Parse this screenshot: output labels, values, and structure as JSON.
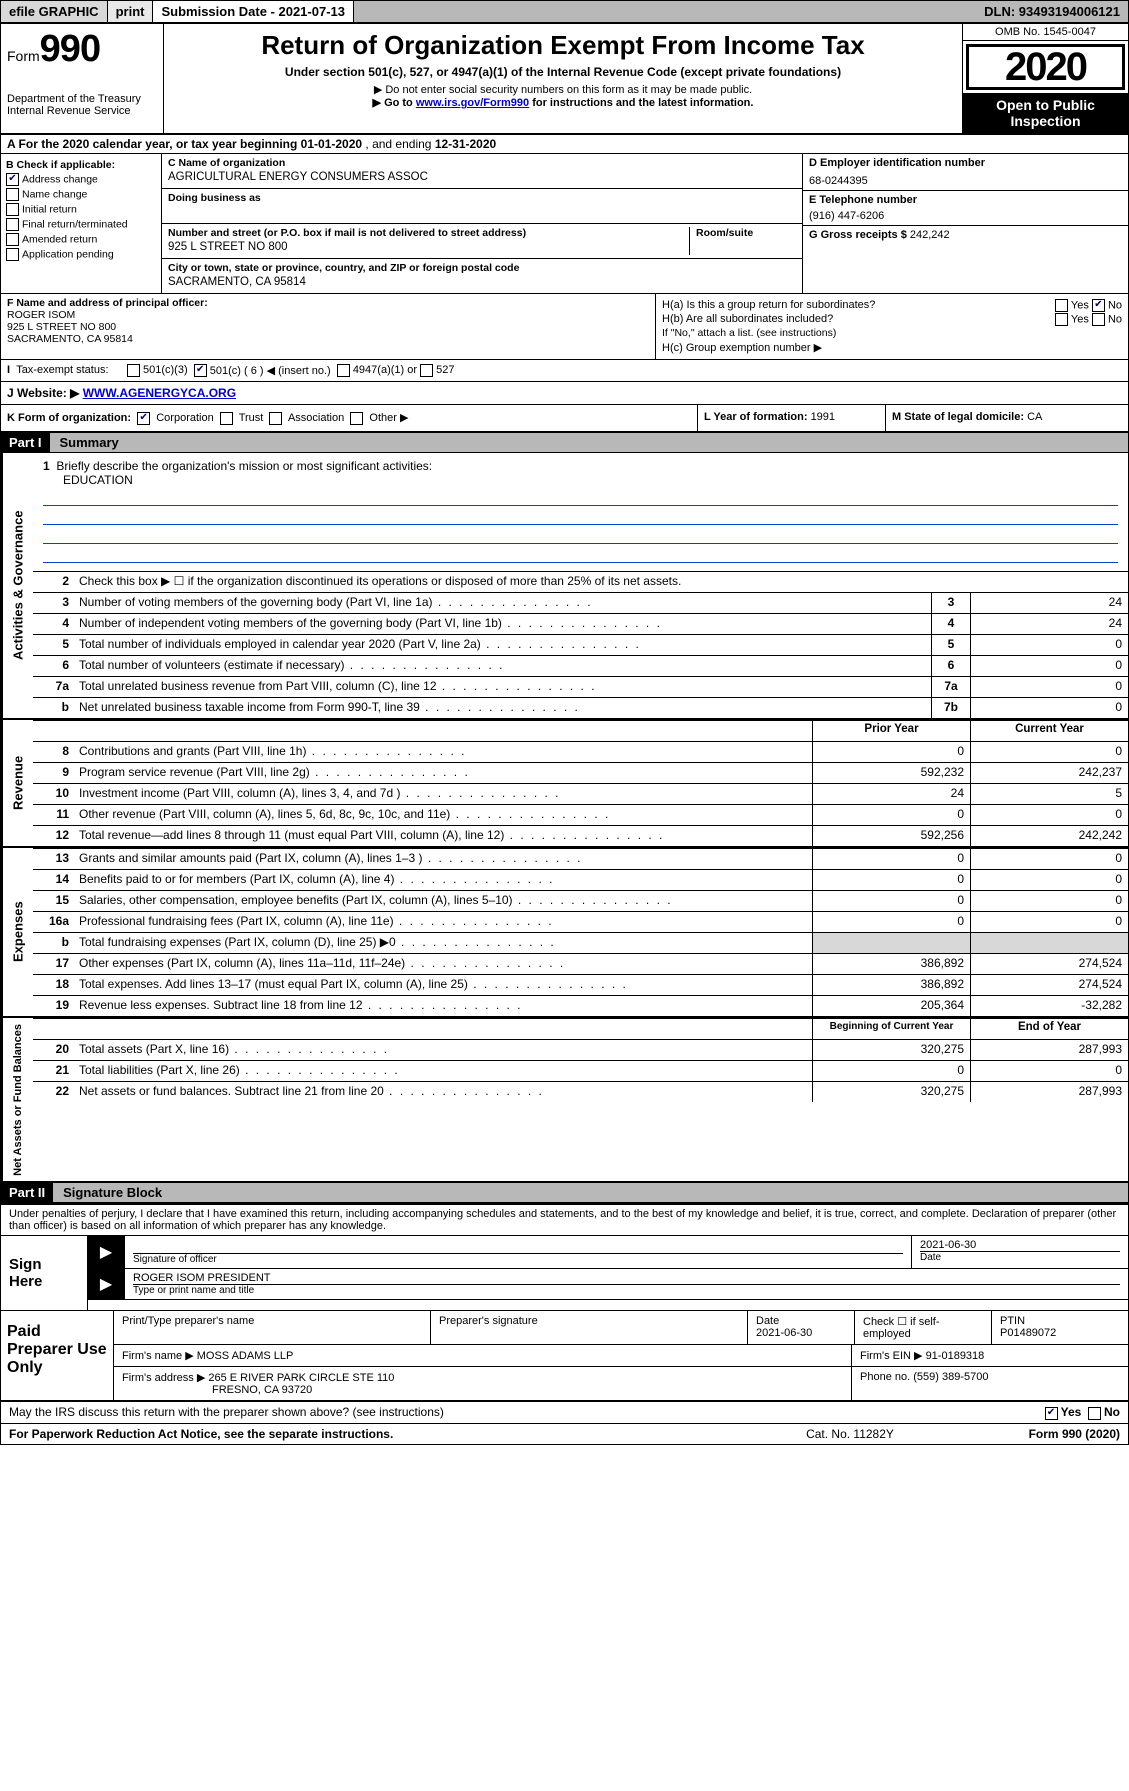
{
  "top": {
    "efile": "efile GRAPHIC",
    "print": "print",
    "submission": "Submission Date - 2021-07-13",
    "dln": "DLN: 93493194006121"
  },
  "header": {
    "form_label": "Form",
    "form_num": "990",
    "title": "Return of Organization Exempt From Income Tax",
    "sub1": "Under section 501(c), 527, or 4947(a)(1) of the Internal Revenue Code (except private foundations)",
    "sub2": "▶ Do not enter social security numbers on this form as it may be made public.",
    "sub3_prefix": "▶ Go to ",
    "sub3_link": "www.irs.gov/Form990",
    "sub3_suffix": " for instructions and the latest information.",
    "dept": "Department of the Treasury",
    "irs": "Internal Revenue Service",
    "omb": "OMB No. 1545-0047",
    "year": "2020",
    "open": "Open to Public Inspection"
  },
  "row_a": {
    "prefix": "A For the 2020 calendar year, or tax year beginning ",
    "begin": "01-01-2020",
    "mid": " , and ending ",
    "end": "12-31-2020"
  },
  "col_b": {
    "label": "B Check if applicable:",
    "addr": "Address change",
    "name": "Name change",
    "init": "Initial return",
    "final": "Final return/terminated",
    "amend": "Amended return",
    "app": "Application pending"
  },
  "col_c": {
    "name_label": "C Name of organization",
    "name": "AGRICULTURAL ENERGY CONSUMERS ASSOC",
    "dba_label": "Doing business as",
    "dba": "",
    "street_label": "Number and street (or P.O. box if mail is not delivered to street address)",
    "room_label": "Room/suite",
    "street": "925 L STREET NO 800",
    "city_label": "City or town, state or province, country, and ZIP or foreign postal code",
    "city": "SACRAMENTO, CA  95814"
  },
  "col_d": {
    "ein_label": "D Employer identification number",
    "ein": "68-0244395",
    "phone_label": "E Telephone number",
    "phone": "(916) 447-6206",
    "gross_label": "G Gross receipts $ ",
    "gross": "242,242"
  },
  "row_f": {
    "label": "F  Name and address of principal officer:",
    "name": "ROGER ISOM",
    "addr1": "925 L STREET NO 800",
    "addr2": "SACRAMENTO, CA  95814",
    "ha": "H(a)  Is this a group return for subordinates?",
    "hb": "H(b)  Are all subordinates included?",
    "hb_note": "If \"No,\" attach a list. (see instructions)",
    "hc": "H(c)  Group exemption number ▶",
    "yes": "Yes",
    "no": "No"
  },
  "tax_status": {
    "label": "Tax-exempt status:",
    "c3": "501(c)(3)",
    "c": "501(c) ( 6 ) ◀ (insert no.)",
    "a1": "4947(a)(1) or",
    "s527": "527"
  },
  "row_j": {
    "label": "J   Website: ▶  ",
    "url": "WWW.AGENERGYCA.ORG"
  },
  "row_k": {
    "label": "K Form of organization:",
    "corp": "Corporation",
    "trust": "Trust",
    "assoc": "Association",
    "other": "Other ▶",
    "l": "L Year of formation: ",
    "l_val": "1991",
    "m": "M State of legal domicile: ",
    "m_val": "CA"
  },
  "part1": {
    "header": "Part I",
    "title": "Summary",
    "side_gov": "Activities & Governance",
    "side_rev": "Revenue",
    "side_exp": "Expenses",
    "side_net": "Net Assets or Fund Balances",
    "line1": "Briefly describe the organization's mission or most significant activities:",
    "mission": "EDUCATION",
    "line2": "Check this box ▶ ☐  if the organization discontinued its operations or disposed of more than 25% of its net assets.",
    "rows": [
      {
        "n": "3",
        "d": "Number of voting members of the governing body (Part VI, line 1a)",
        "b": "3",
        "v": "24"
      },
      {
        "n": "4",
        "d": "Number of independent voting members of the governing body (Part VI, line 1b)",
        "b": "4",
        "v": "24"
      },
      {
        "n": "5",
        "d": "Total number of individuals employed in calendar year 2020 (Part V, line 2a)",
        "b": "5",
        "v": "0"
      },
      {
        "n": "6",
        "d": "Total number of volunteers (estimate if necessary)",
        "b": "6",
        "v": "0"
      },
      {
        "n": "7a",
        "d": "Total unrelated business revenue from Part VIII, column (C), line 12",
        "b": "7a",
        "v": "0"
      },
      {
        "n": "b",
        "d": "Net unrelated business taxable income from Form 990-T, line 39",
        "b": "7b",
        "v": "0"
      }
    ],
    "col_prior": "Prior Year",
    "col_current": "Current Year",
    "revenue": [
      {
        "n": "8",
        "d": "Contributions and grants (Part VIII, line 1h)",
        "p": "0",
        "c": "0"
      },
      {
        "n": "9",
        "d": "Program service revenue (Part VIII, line 2g)",
        "p": "592,232",
        "c": "242,237"
      },
      {
        "n": "10",
        "d": "Investment income (Part VIII, column (A), lines 3, 4, and 7d )",
        "p": "24",
        "c": "5"
      },
      {
        "n": "11",
        "d": "Other revenue (Part VIII, column (A), lines 5, 6d, 8c, 9c, 10c, and 11e)",
        "p": "0",
        "c": "0"
      },
      {
        "n": "12",
        "d": "Total revenue—add lines 8 through 11 (must equal Part VIII, column (A), line 12)",
        "p": "592,256",
        "c": "242,242"
      }
    ],
    "expenses": [
      {
        "n": "13",
        "d": "Grants and similar amounts paid (Part IX, column (A), lines 1–3 )",
        "p": "0",
        "c": "0"
      },
      {
        "n": "14",
        "d": "Benefits paid to or for members (Part IX, column (A), line 4)",
        "p": "0",
        "c": "0"
      },
      {
        "n": "15",
        "d": "Salaries, other compensation, employee benefits (Part IX, column (A), lines 5–10)",
        "p": "0",
        "c": "0"
      },
      {
        "n": "16a",
        "d": "Professional fundraising fees (Part IX, column (A), line 11e)",
        "p": "0",
        "c": "0"
      },
      {
        "n": "b",
        "d": "Total fundraising expenses (Part IX, column (D), line 25) ▶0",
        "p": "",
        "c": "",
        "shade": true
      },
      {
        "n": "17",
        "d": "Other expenses (Part IX, column (A), lines 11a–11d, 11f–24e)",
        "p": "386,892",
        "c": "274,524"
      },
      {
        "n": "18",
        "d": "Total expenses. Add lines 13–17 (must equal Part IX, column (A), line 25)",
        "p": "386,892",
        "c": "274,524"
      },
      {
        "n": "19",
        "d": "Revenue less expenses. Subtract line 18 from line 12",
        "p": "205,364",
        "c": "-32,282"
      }
    ],
    "col_begin": "Beginning of Current Year",
    "col_end": "End of Year",
    "net": [
      {
        "n": "20",
        "d": "Total assets (Part X, line 16)",
        "p": "320,275",
        "c": "287,993"
      },
      {
        "n": "21",
        "d": "Total liabilities (Part X, line 26)",
        "p": "0",
        "c": "0"
      },
      {
        "n": "22",
        "d": "Net assets or fund balances. Subtract line 21 from line 20",
        "p": "320,275",
        "c": "287,993"
      }
    ]
  },
  "part2": {
    "header": "Part II",
    "title": "Signature Block",
    "perjury": "Under penalties of perjury, I declare that I have examined this return, including accompanying schedules and statements, and to the best of my knowledge and belief, it is true, correct, and complete. Declaration of preparer (other than officer) is based on all information of which preparer has any knowledge.",
    "sign_here": "Sign Here",
    "sig_officer": "Signature of officer",
    "date_label": "Date",
    "date": "2021-06-30",
    "officer_name": "ROGER ISOM PRESIDENT",
    "type_label": "Type or print name and title",
    "paid": "Paid Preparer Use Only",
    "prep_name_label": "Print/Type preparer's name",
    "prep_sig_label": "Preparer's signature",
    "prep_date": "2021-06-30",
    "check_self": "Check ☐ if self-employed",
    "ptin_label": "PTIN",
    "ptin": "P01489072",
    "firm_name_label": "Firm's name    ▶ ",
    "firm_name": "MOSS ADAMS LLP",
    "firm_ein_label": "Firm's EIN ▶ ",
    "firm_ein": "91-0189318",
    "firm_addr_label": "Firm's address ▶ ",
    "firm_addr": "265 E RIVER PARK CIRCLE STE 110",
    "firm_city": "FRESNO, CA  93720",
    "firm_phone_label": "Phone no. ",
    "firm_phone": "(559) 389-5700",
    "discuss": "May the IRS discuss this return with the preparer shown above? (see instructions)",
    "paperwork": "For Paperwork Reduction Act Notice, see the separate instructions.",
    "cat": "Cat. No. 11282Y",
    "form_footer": "Form 990 (2020)"
  }
}
